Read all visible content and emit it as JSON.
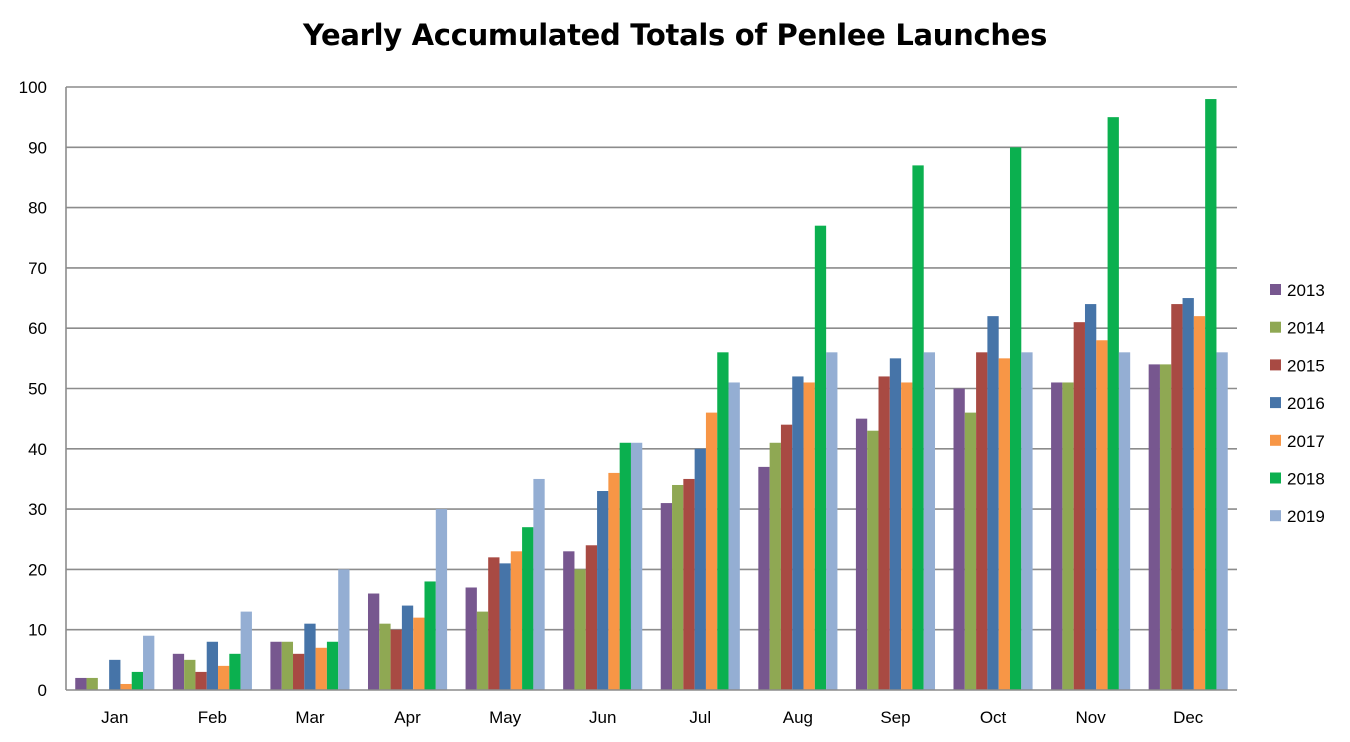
{
  "chart_data": {
    "type": "bar",
    "title": "Yearly Accumulated Totals of Penlee Launches",
    "xlabel": "",
    "ylabel": "",
    "ylim": [
      0,
      100
    ],
    "yticks": [
      0,
      10,
      20,
      30,
      40,
      50,
      60,
      70,
      80,
      90,
      100
    ],
    "grid": true,
    "legend_position": "right",
    "categories": [
      "Jan",
      "Feb",
      "Mar",
      "Apr",
      "May",
      "Jun",
      "Jul",
      "Aug",
      "Sep",
      "Oct",
      "Nov",
      "Dec"
    ],
    "series": [
      {
        "name": "2013",
        "color": "#77578F",
        "values": [
          2,
          6,
          8,
          16,
          17,
          23,
          31,
          37,
          45,
          50,
          51,
          54
        ]
      },
      {
        "name": "2014",
        "color": "#8FA853",
        "values": [
          2,
          5,
          8,
          11,
          13,
          20,
          34,
          41,
          43,
          46,
          51,
          54
        ]
      },
      {
        "name": "2015",
        "color": "#A84A43",
        "values": [
          0,
          3,
          6,
          10,
          22,
          24,
          35,
          44,
          52,
          56,
          61,
          64
        ]
      },
      {
        "name": "2016",
        "color": "#4674A8",
        "values": [
          5,
          8,
          11,
          14,
          21,
          33,
          40,
          52,
          55,
          62,
          64,
          65
        ]
      },
      {
        "name": "2017",
        "color": "#F79646",
        "values": [
          1,
          4,
          7,
          12,
          23,
          36,
          46,
          51,
          51,
          55,
          58,
          62
        ]
      },
      {
        "name": "2018",
        "color": "#0BB04F",
        "values": [
          3,
          6,
          8,
          18,
          27,
          41,
          56,
          77,
          87,
          90,
          95,
          98
        ]
      },
      {
        "name": "2019",
        "color": "#94AED3",
        "values": [
          9,
          13,
          20,
          30,
          35,
          41,
          51,
          56,
          56,
          56,
          56,
          56
        ]
      }
    ]
  }
}
